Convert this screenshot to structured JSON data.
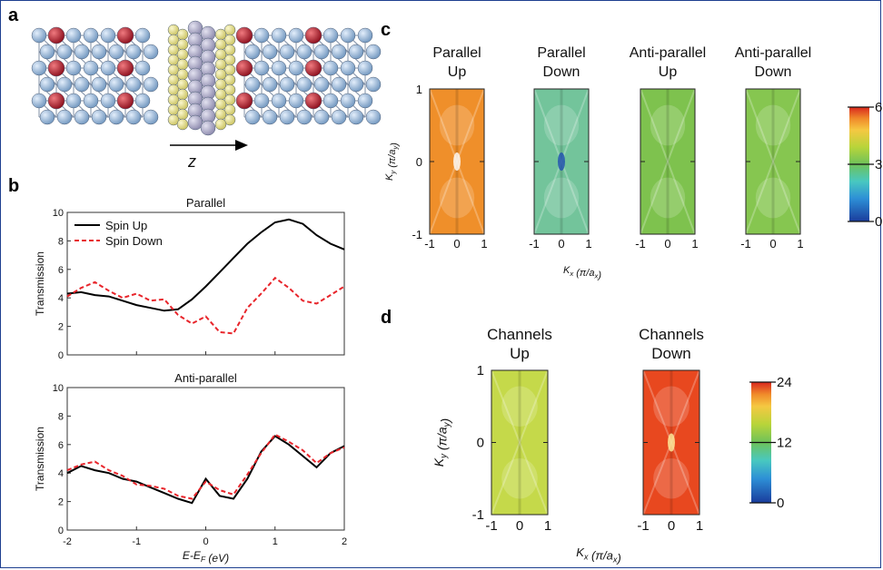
{
  "panels": {
    "a": "a",
    "b": "b",
    "c": "c",
    "d": "d"
  },
  "panel_a": {
    "axis_label": "z"
  },
  "colors": {
    "frame": "#1d3f8f",
    "atom_blue": "#8fb3d6",
    "atom_red": "#b0182a",
    "atom_yellow": "#e6e08a",
    "atom_lavender": "#aaa7c6",
    "spin_up": "#000000",
    "spin_down": "#e8252b",
    "colormap": [
      "#1a3c9c",
      "#2d8fd6",
      "#48c8c0",
      "#6ec25a",
      "#b8d43a",
      "#f5c842",
      "#f08a2a",
      "#d9281f"
    ]
  },
  "chart_data": [
    {
      "type": "line",
      "title": "Parallel",
      "xlabel": "",
      "ylabel": "Transmission",
      "xlim": [
        -2,
        2
      ],
      "ylim": [
        0,
        10
      ],
      "xticks": [
        "-2",
        "-1",
        "0",
        "1",
        "2"
      ],
      "yticks": [
        "0",
        "2",
        "4",
        "6",
        "8",
        "10"
      ],
      "legend": "top-left",
      "series": [
        {
          "name": "Spin Up",
          "style": "solid",
          "x": [
            -2,
            -1.8,
            -1.6,
            -1.4,
            -1.2,
            -1.0,
            -0.8,
            -0.6,
            -0.4,
            -0.2,
            0.0,
            0.2,
            0.4,
            0.6,
            0.8,
            1.0,
            1.2,
            1.4,
            1.6,
            1.8,
            2.0
          ],
          "y": [
            4.3,
            4.4,
            4.2,
            4.1,
            3.8,
            3.5,
            3.3,
            3.1,
            3.2,
            3.9,
            4.8,
            5.8,
            6.8,
            7.8,
            8.6,
            9.3,
            9.5,
            9.2,
            8.4,
            7.8,
            7.4
          ]
        },
        {
          "name": "Spin Down",
          "style": "dashed",
          "x": [
            -2,
            -1.8,
            -1.6,
            -1.4,
            -1.2,
            -1.0,
            -0.8,
            -0.6,
            -0.4,
            -0.2,
            0.0,
            0.2,
            0.4,
            0.6,
            0.8,
            1.0,
            1.2,
            1.4,
            1.6,
            1.8,
            2.0
          ],
          "y": [
            4.1,
            4.7,
            5.1,
            4.5,
            4.0,
            4.3,
            3.8,
            3.9,
            2.8,
            2.2,
            2.7,
            1.6,
            1.5,
            3.3,
            4.3,
            5.4,
            4.7,
            3.8,
            3.6,
            4.2,
            4.8
          ]
        }
      ]
    },
    {
      "type": "line",
      "title": "Anti-parallel",
      "xlabel": "E-E_F (eV)",
      "ylabel": "Transmission",
      "xlim": [
        -2,
        2
      ],
      "ylim": [
        0,
        10
      ],
      "xticks": [
        "-2",
        "-1",
        "0",
        "1",
        "2"
      ],
      "yticks": [
        "0",
        "2",
        "4",
        "6",
        "8",
        "10"
      ],
      "series": [
        {
          "name": "Spin Up",
          "style": "solid",
          "x": [
            -2,
            -1.8,
            -1.6,
            -1.4,
            -1.2,
            -1.0,
            -0.8,
            -0.6,
            -0.4,
            -0.2,
            0.0,
            0.2,
            0.4,
            0.6,
            0.8,
            1.0,
            1.2,
            1.4,
            1.6,
            1.8,
            2.0
          ],
          "y": [
            4.0,
            4.5,
            4.2,
            4.0,
            3.6,
            3.4,
            3.0,
            2.6,
            2.2,
            1.9,
            3.6,
            2.4,
            2.2,
            3.6,
            5.5,
            6.6,
            6.0,
            5.2,
            4.4,
            5.4,
            5.9
          ]
        },
        {
          "name": "Spin Down",
          "style": "dashed",
          "x": [
            -2,
            -1.8,
            -1.6,
            -1.4,
            -1.2,
            -1.0,
            -0.8,
            -0.6,
            -0.4,
            -0.2,
            0.0,
            0.2,
            0.4,
            0.6,
            0.8,
            1.0,
            1.2,
            1.4,
            1.6,
            1.8,
            2.0
          ],
          "y": [
            4.2,
            4.6,
            4.8,
            4.2,
            3.8,
            3.2,
            3.1,
            2.9,
            2.4,
            2.2,
            3.4,
            2.8,
            2.5,
            3.9,
            5.4,
            6.7,
            6.2,
            5.6,
            4.7,
            5.4,
            5.8
          ]
        }
      ]
    },
    {
      "type": "heatmap",
      "xlabel": "K_x (π/a_x)",
      "ylabel": "K_y (π/a_y)",
      "xlim": [
        -1,
        1
      ],
      "ylim": [
        -1,
        1
      ],
      "xticks": [
        "-1",
        "0",
        "1"
      ],
      "yticks": [
        "-1",
        "0",
        "1"
      ],
      "colorbar": {
        "min": 0,
        "max": 6,
        "ticks": [
          "0",
          "3",
          "6"
        ]
      },
      "maps": [
        {
          "title_line1": "Parallel",
          "title_line2": "Up",
          "base": "#ef8f2a"
        },
        {
          "title_line1": "Parallel",
          "title_line2": "Down",
          "base": "#73c49b"
        },
        {
          "title_line1": "Anti-parallel",
          "title_line2": "Up",
          "base": "#7ec24e"
        },
        {
          "title_line1": "Anti-parallel",
          "title_line2": "Down",
          "base": "#86c650"
        }
      ]
    },
    {
      "type": "heatmap",
      "xlabel": "K_x (π/a_x)",
      "ylabel": "K_y (π/a_y)",
      "xlim": [
        -1,
        1
      ],
      "ylim": [
        -1,
        1
      ],
      "xticks": [
        "-1",
        "0",
        "1"
      ],
      "yticks": [
        "-1",
        "0",
        "1"
      ],
      "colorbar": {
        "min": 0,
        "max": 24,
        "ticks": [
          "0",
          "12",
          "24"
        ]
      },
      "maps": [
        {
          "title_line1": "Channels",
          "title_line2": "Up",
          "base": "#c5d94a"
        },
        {
          "title_line1": "Channels",
          "title_line2": "Down",
          "base": "#e8481f"
        }
      ]
    }
  ]
}
